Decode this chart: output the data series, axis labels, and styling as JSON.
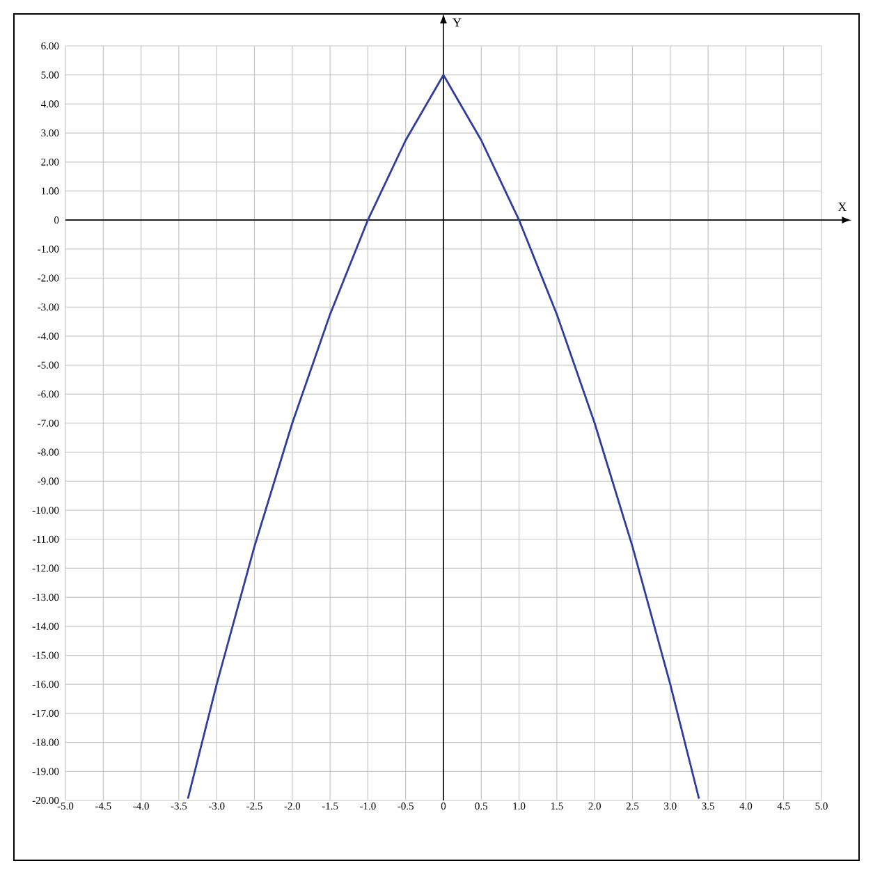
{
  "chart_data": {
    "type": "line",
    "xlabel": "X",
    "ylabel": "Y",
    "x": [
      -3.38,
      -3,
      -2.5,
      -2,
      -1.5,
      -1,
      -0.5,
      0,
      0.5,
      1,
      1.5,
      2,
      2.5,
      3,
      3.38
    ],
    "series": [
      {
        "color": "#2e3d9e",
        "values": [
          -19.94,
          -16,
          -11.25,
          -7,
          -3.25,
          0,
          2.75,
          5,
          2.75,
          0,
          -3.25,
          -7,
          -11.25,
          -16,
          -19.94
        ]
      }
    ],
    "xlim": [
      -5,
      5
    ],
    "ylim": [
      -20,
      6
    ],
    "xticks": [
      {
        "value": -5,
        "label": "-5.0"
      },
      {
        "value": -4.5,
        "label": "-4.5"
      },
      {
        "value": -4,
        "label": "-4.0"
      },
      {
        "value": -3.5,
        "label": "-3.5"
      },
      {
        "value": -3,
        "label": "-3.0"
      },
      {
        "value": -2.5,
        "label": "-2.5"
      },
      {
        "value": -2,
        "label": "-2.0"
      },
      {
        "value": -1.5,
        "label": "-1.5"
      },
      {
        "value": -1,
        "label": "-1.0"
      },
      {
        "value": -0.5,
        "label": "-0.5"
      },
      0,
      {
        "value": 0.5,
        "label": "0.5"
      },
      {
        "value": 1,
        "label": "1.0"
      },
      {
        "value": 1.5,
        "label": "1.5"
      },
      {
        "value": 2,
        "label": "2.0"
      },
      {
        "value": 2.5,
        "label": "2.5"
      },
      {
        "value": 3,
        "label": "3.0"
      },
      {
        "value": 3.5,
        "label": "3.5"
      },
      {
        "value": 4,
        "label": "4.0"
      },
      {
        "value": 4.5,
        "label": "4.5"
      },
      {
        "value": 5,
        "label": "5.0"
      }
    ],
    "yticks": [
      {
        "value": 6,
        "label": "6.00"
      },
      {
        "value": 5,
        "label": "5.00"
      },
      {
        "value": 4,
        "label": "4.00"
      },
      {
        "value": 3,
        "label": "3.00"
      },
      {
        "value": 2,
        "label": "2.00"
      },
      {
        "value": 1,
        "label": "1.00"
      },
      0,
      {
        "value": -1,
        "label": "-1.00"
      },
      {
        "value": -2,
        "label": "-2.00"
      },
      {
        "value": -3,
        "label": "-3.00"
      },
      {
        "value": -4,
        "label": "-4.00"
      },
      {
        "value": -5,
        "label": "-5.00"
      },
      {
        "value": -6,
        "label": "-6.00"
      },
      {
        "value": -7,
        "label": "-7.00"
      },
      {
        "value": -8,
        "label": "-8.00"
      },
      {
        "value": -9,
        "label": "-9.00"
      },
      {
        "value": -10,
        "label": "-10.00"
      },
      {
        "value": -11,
        "label": "-11.00"
      },
      {
        "value": -12,
        "label": "-12.00"
      },
      {
        "value": -13,
        "label": "-13.00"
      },
      {
        "value": -14,
        "label": "-14.00"
      },
      {
        "value": -15,
        "label": "-15.00"
      },
      {
        "value": -16,
        "label": "-16.00"
      },
      {
        "value": -17,
        "label": "-17.00"
      },
      {
        "value": -18,
        "label": "-18.00"
      },
      {
        "value": -19,
        "label": "-19.00"
      },
      {
        "value": -20,
        "label": "-20.00"
      }
    ],
    "grid": true,
    "marker": "none",
    "line_style": "solid"
  }
}
